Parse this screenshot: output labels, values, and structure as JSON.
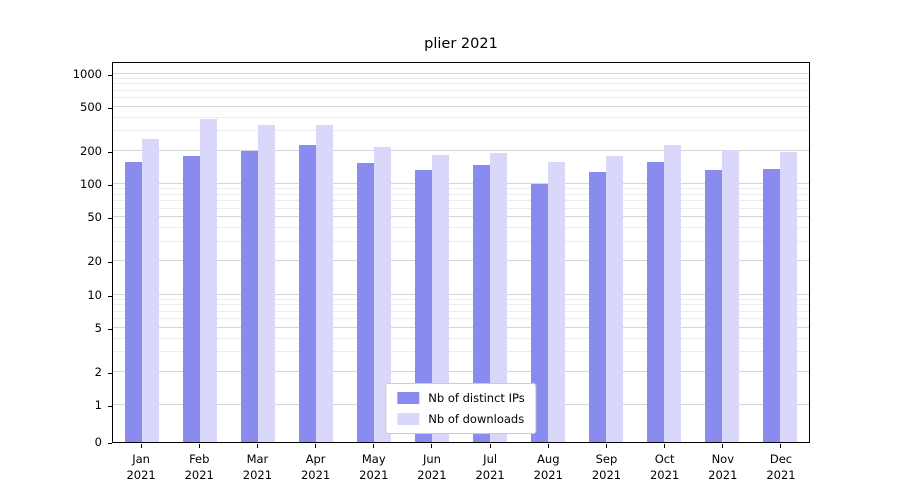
{
  "chart_data": {
    "type": "bar",
    "title": "plier 2021",
    "categories": [
      "Jan 2021",
      "Feb 2021",
      "Mar 2021",
      "Apr 2021",
      "May 2021",
      "Jun 2021",
      "Jul 2021",
      "Aug 2021",
      "Sep 2021",
      "Oct 2021",
      "Nov 2021",
      "Dec 2021"
    ],
    "series": [
      {
        "name": "Nb of distinct IPs",
        "color": "#8a8bef",
        "values": [
          160,
          180,
          200,
          225,
          155,
          135,
          150,
          100,
          128,
          160,
          135,
          138
        ]
      },
      {
        "name": "Nb of downloads",
        "color": "#d9d8fa",
        "values": [
          255,
          385,
          345,
          340,
          215,
          185,
          190,
          158,
          178,
          225,
          205,
          195
        ]
      }
    ],
    "yscale": "symlog",
    "yticks": [
      0,
      1,
      2,
      5,
      10,
      20,
      50,
      100,
      200,
      500,
      1000
    ],
    "ylim": [
      0,
      1300
    ],
    "grid": true,
    "legend_position": "lower center"
  }
}
